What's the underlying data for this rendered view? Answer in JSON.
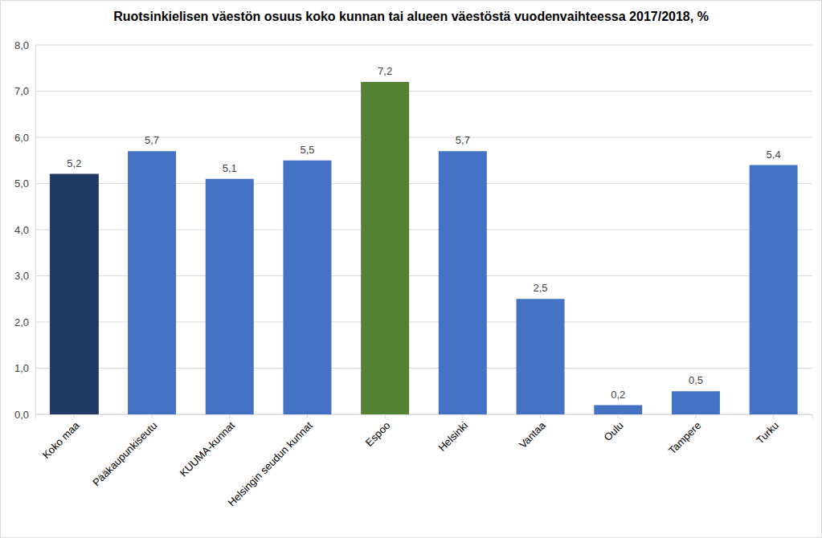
{
  "chart_data": {
    "type": "bar",
    "title": "Ruotsinkielisen väestön osuus koko kunnan tai alueen väestöstä vuodenvaihteessa 2017/2018, %",
    "categories": [
      "Koko maa",
      "Pääkaupunkiseutu",
      "KUUMA-kunnat",
      "Helsingin seudun kunnat",
      "Espoo",
      "Helsinki",
      "Vantaa",
      "Oulu",
      "Tampere",
      "Turku"
    ],
    "values": [
      5.2,
      5.7,
      5.1,
      5.5,
      7.2,
      5.7,
      2.5,
      0.2,
      0.5,
      5.4
    ],
    "value_labels": [
      "5,2",
      "5,7",
      "5,1",
      "5,5",
      "7,2",
      "5,7",
      "2,5",
      "0,2",
      "0,5",
      "5,4"
    ],
    "colors": [
      "#1f3864",
      "#4472c4",
      "#4472c4",
      "#4472c4",
      "#548235",
      "#4472c4",
      "#4472c4",
      "#4472c4",
      "#4472c4",
      "#4472c4"
    ],
    "ylim": [
      0,
      8
    ],
    "yticks": [
      {
        "value": 0,
        "label": "0,0"
      },
      {
        "value": 1,
        "label": "1,0"
      },
      {
        "value": 2,
        "label": "2,0"
      },
      {
        "value": 3,
        "label": "3,0"
      },
      {
        "value": 4,
        "label": "4,0"
      },
      {
        "value": 5,
        "label": "5,0"
      },
      {
        "value": 6,
        "label": "6,0"
      },
      {
        "value": 7,
        "label": "7,0"
      },
      {
        "value": 8,
        "label": "8,0"
      }
    ],
    "grid": true,
    "data_labels": true
  }
}
